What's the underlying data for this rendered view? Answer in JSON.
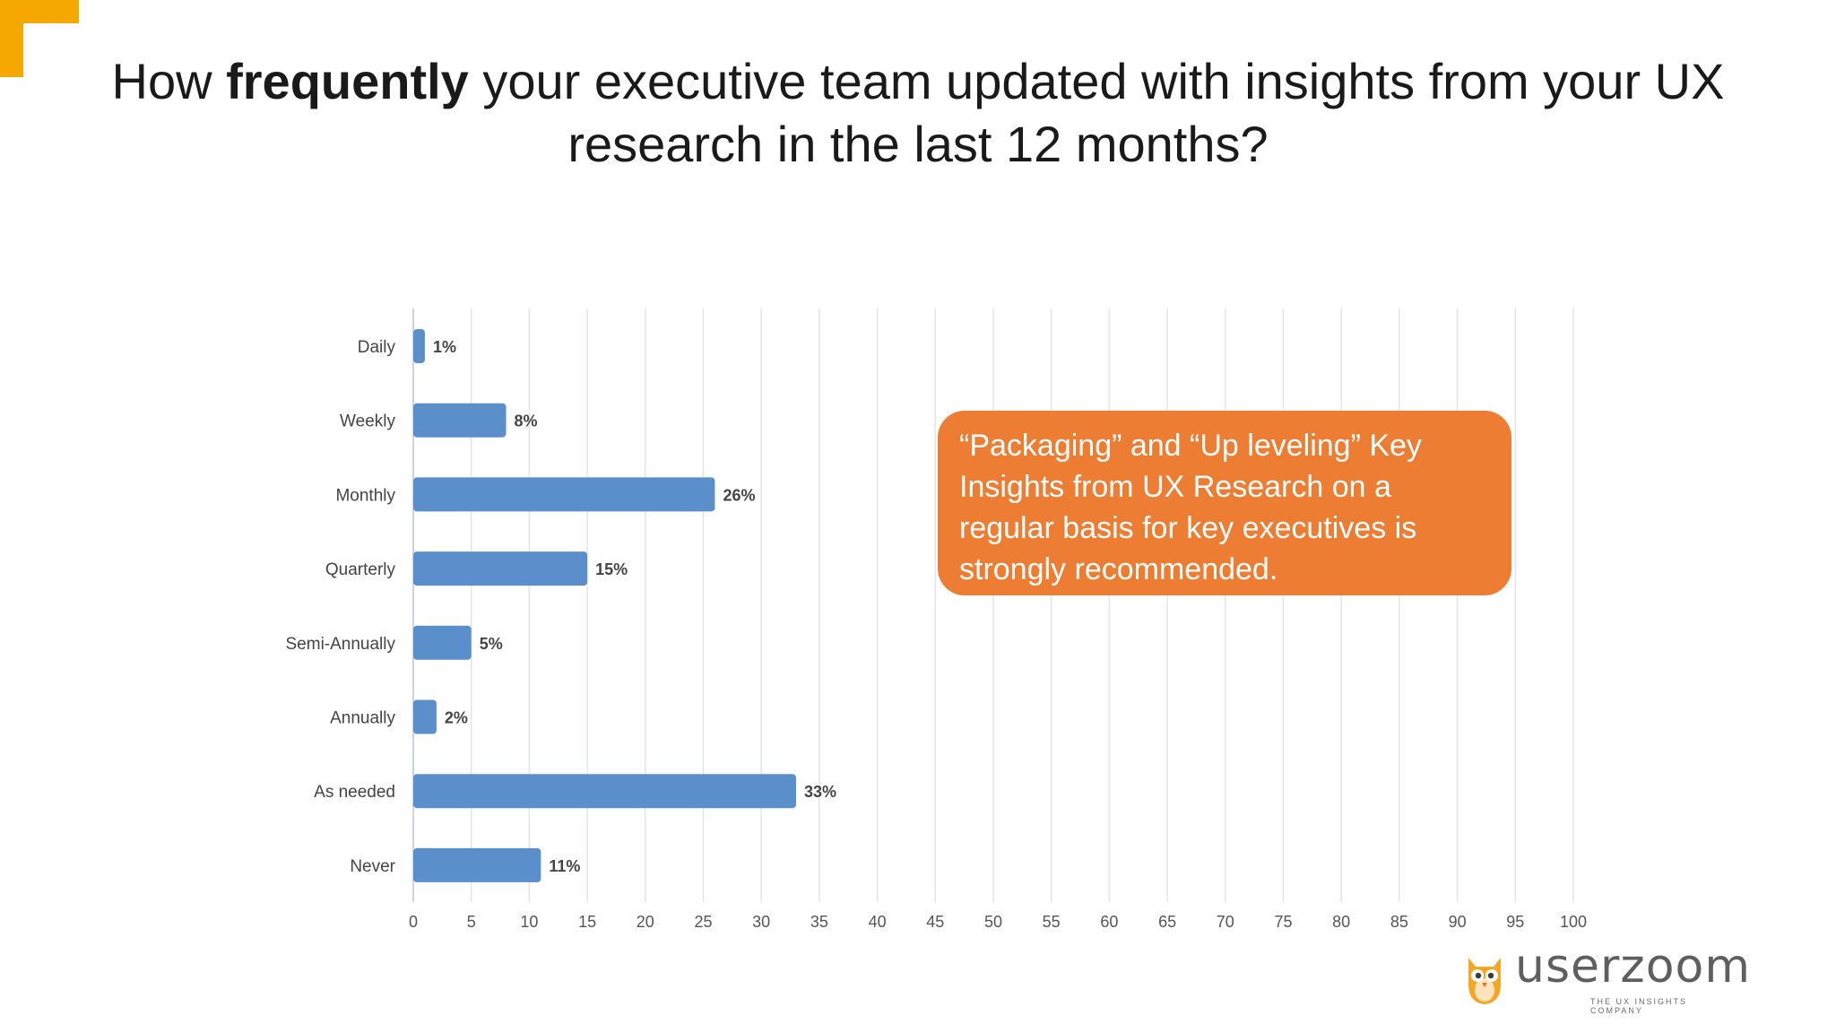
{
  "slide": {
    "title_pre": "How ",
    "title_bold": "frequently",
    "title_post": " your executive team updated with insights from your UX research in the last 12 months?",
    "callout": "“Packaging” and “Up leveling” Key Insights from UX Research on a regular basis for key executives is strongly recommended.",
    "logo_text": "userzoom",
    "logo_tagline": "THE UX INSIGHTS COMPANY"
  },
  "colors": {
    "bar": "#5b8fcb",
    "callout": "#ec7d32",
    "accent_corner": "#f5a800",
    "grid": "#e4e4ea"
  },
  "chart_data": {
    "type": "bar",
    "orientation": "horizontal",
    "categories": [
      "Daily",
      "Weekly",
      "Monthly",
      "Quarterly",
      "Semi-Annually",
      "Annually",
      "As needed",
      "Never"
    ],
    "values": [
      1,
      8,
      26,
      15,
      5,
      2,
      33,
      11
    ],
    "data_labels": [
      "1%",
      "8%",
      "26%",
      "15%",
      "5%",
      "2%",
      "33%",
      "11%"
    ],
    "xlim": [
      0,
      100
    ],
    "xticks": [
      0,
      5,
      10,
      15,
      20,
      25,
      30,
      35,
      40,
      45,
      50,
      55,
      60,
      65,
      70,
      75,
      80,
      85,
      90,
      95,
      100
    ],
    "grid": true,
    "legend": "none"
  }
}
